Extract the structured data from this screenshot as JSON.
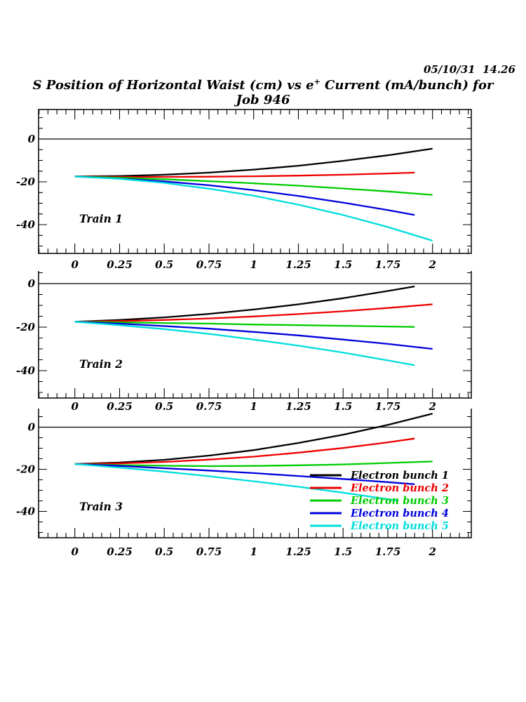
{
  "header": {
    "timestamp": "05/10/31  14.26",
    "title_prefix": "S Position of Horizontal Waist (cm) vs e",
    "title_sup": "+",
    "title_suffix": " Current (mA/bunch) for Job 946"
  },
  "axis": {
    "x_major_values": [
      0,
      0.25,
      0.5,
      0.75,
      1,
      1.25,
      1.5,
      1.75,
      2
    ],
    "x_major_labels": [
      "0",
      "0.25",
      "0.5",
      "0.75",
      "1",
      "1.25",
      "1.5",
      "1.75",
      "2"
    ],
    "y_major_values": [
      0,
      -20,
      -40
    ],
    "y_major_labels": [
      "0",
      "-20",
      "-40"
    ]
  },
  "legend": {
    "items": [
      {
        "label": "Electron bunch 1",
        "color": "#000000"
      },
      {
        "label": "Electron bunch 2",
        "color": "#ee0000"
      },
      {
        "label": "Electron bunch 3",
        "color": "#00cc00"
      },
      {
        "label": "Electron bunch 4",
        "color": "#0000dd"
      },
      {
        "label": "Electron bunch 5",
        "color": "#00dddd"
      }
    ]
  },
  "chart_data": [
    {
      "type": "line",
      "title": "Train 1",
      "xlabel": "e+ Current (mA/bunch)",
      "ylabel": "S Position of Horizontal Waist (cm)",
      "xlim": [
        -0.2,
        2.2
      ],
      "ylim": [
        -53.5,
        13
      ],
      "grid": false,
      "series": [
        {
          "name": "Electron bunch 1",
          "color": "#000000",
          "points": [
            [
              0,
              -17.5
            ],
            [
              0.25,
              -17.3
            ],
            [
              0.5,
              -16.7
            ],
            [
              0.75,
              -15.7
            ],
            [
              1,
              -14.3
            ],
            [
              1.25,
              -12.5
            ],
            [
              1.5,
              -10.2
            ],
            [
              1.75,
              -7.6
            ],
            [
              2,
              -4.5
            ]
          ]
        },
        {
          "name": "Electron bunch 2",
          "color": "#ee0000",
          "points": [
            [
              0,
              -17.5
            ],
            [
              0.25,
              -17.7
            ],
            [
              0.5,
              -17.7
            ],
            [
              0.75,
              -17.6
            ],
            [
              1,
              -17.4
            ],
            [
              1.25,
              -17.1
            ],
            [
              1.5,
              -16.7
            ],
            [
              1.75,
              -16.1
            ],
            [
              1.9,
              -15.7
            ]
          ]
        },
        {
          "name": "Electron bunch 3",
          "color": "#00cc00",
          "points": [
            [
              0,
              -17.5
            ],
            [
              0.25,
              -18.1
            ],
            [
              0.5,
              -18.8
            ],
            [
              0.75,
              -19.7
            ],
            [
              1,
              -20.7
            ],
            [
              1.25,
              -21.8
            ],
            [
              1.5,
              -23.1
            ],
            [
              1.75,
              -24.5
            ],
            [
              2,
              -26.1
            ]
          ]
        },
        {
          "name": "Electron bunch 4",
          "color": "#0000dd",
          "points": [
            [
              0,
              -17.5
            ],
            [
              0.25,
              -18.5
            ],
            [
              0.5,
              -19.8
            ],
            [
              0.75,
              -21.6
            ],
            [
              1,
              -23.9
            ],
            [
              1.25,
              -26.6
            ],
            [
              1.5,
              -29.7
            ],
            [
              1.75,
              -33.2
            ],
            [
              1.9,
              -35.5
            ]
          ]
        },
        {
          "name": "Electron bunch 5",
          "color": "#00dddd",
          "points": [
            [
              0,
              -17.5
            ],
            [
              0.25,
              -18.6
            ],
            [
              0.5,
              -20.5
            ],
            [
              0.75,
              -23.2
            ],
            [
              1,
              -26.5
            ],
            [
              1.25,
              -30.7
            ],
            [
              1.5,
              -35.5
            ],
            [
              1.75,
              -41.1
            ],
            [
              2,
              -47.5
            ]
          ]
        }
      ]
    },
    {
      "type": "line",
      "title": "Train 2",
      "xlabel": "e+ Current (mA/bunch)",
      "ylabel": "S Position of Horizontal Waist (cm)",
      "xlim": [
        -0.2,
        2.2
      ],
      "ylim": [
        -52.6,
        5.8
      ],
      "grid": false,
      "series": [
        {
          "name": "Electron bunch 1",
          "color": "#000000",
          "points": [
            [
              0,
              -17.5
            ],
            [
              0.25,
              -16.7
            ],
            [
              0.5,
              -15.5
            ],
            [
              0.75,
              -13.9
            ],
            [
              1,
              -11.9
            ],
            [
              1.25,
              -9.5
            ],
            [
              1.5,
              -6.7
            ],
            [
              1.75,
              -3.4
            ],
            [
              1.9,
              -1.3
            ]
          ]
        },
        {
          "name": "Electron bunch 2",
          "color": "#ee0000",
          "points": [
            [
              0,
              -17.5
            ],
            [
              0.25,
              -17.2
            ],
            [
              0.5,
              -16.7
            ],
            [
              0.75,
              -16.0
            ],
            [
              1,
              -15.1
            ],
            [
              1.25,
              -14.0
            ],
            [
              1.5,
              -12.7
            ],
            [
              1.75,
              -11.2
            ],
            [
              2,
              -9.5
            ]
          ]
        },
        {
          "name": "Electron bunch 3",
          "color": "#00cc00",
          "points": [
            [
              0,
              -17.5
            ],
            [
              0.25,
              -17.8
            ],
            [
              0.5,
              -18.1
            ],
            [
              0.75,
              -18.4
            ],
            [
              1,
              -18.8
            ],
            [
              1.25,
              -19.1
            ],
            [
              1.5,
              -19.4
            ],
            [
              1.75,
              -19.7
            ],
            [
              1.9,
              -19.9
            ]
          ]
        },
        {
          "name": "Electron bunch 4",
          "color": "#0000dd",
          "points": [
            [
              0,
              -17.5
            ],
            [
              0.25,
              -18.4
            ],
            [
              0.5,
              -19.5
            ],
            [
              0.75,
              -20.7
            ],
            [
              1,
              -22.2
            ],
            [
              1.25,
              -23.8
            ],
            [
              1.5,
              -25.7
            ],
            [
              1.75,
              -27.7
            ],
            [
              2,
              -30.0
            ]
          ]
        },
        {
          "name": "Electron bunch 5",
          "color": "#00dddd",
          "points": [
            [
              0,
              -17.5
            ],
            [
              0.25,
              -19.1
            ],
            [
              0.5,
              -20.9
            ],
            [
              0.75,
              -23.1
            ],
            [
              1,
              -25.7
            ],
            [
              1.25,
              -28.5
            ],
            [
              1.5,
              -31.7
            ],
            [
              1.75,
              -35.3
            ],
            [
              1.9,
              -37.5
            ]
          ]
        }
      ]
    },
    {
      "type": "line",
      "title": "Train 3",
      "xlabel": "e+ Current (mA/bunch)",
      "ylabel": "S Position of Horizontal Waist (cm)",
      "xlim": [
        -0.2,
        2.2
      ],
      "ylim": [
        -52.7,
        8.7
      ],
      "grid": false,
      "legend_position": "inside lower right",
      "series": [
        {
          "name": "Electron bunch 1",
          "color": "#000000",
          "points": [
            [
              0,
              -17.5
            ],
            [
              0.25,
              -16.8
            ],
            [
              0.5,
              -15.5
            ],
            [
              0.75,
              -13.5
            ],
            [
              1,
              -10.9
            ],
            [
              1.25,
              -7.5
            ],
            [
              1.5,
              -3.6
            ],
            [
              1.75,
              1.1
            ],
            [
              2,
              6.4
            ]
          ]
        },
        {
          "name": "Electron bunch 2",
          "color": "#ee0000",
          "points": [
            [
              0,
              -17.5
            ],
            [
              0.25,
              -17.2
            ],
            [
              0.5,
              -16.5
            ],
            [
              0.75,
              -15.4
            ],
            [
              1,
              -14.0
            ],
            [
              1.25,
              -12.1
            ],
            [
              1.5,
              -9.9
            ],
            [
              1.75,
              -7.2
            ],
            [
              1.9,
              -5.4
            ]
          ]
        },
        {
          "name": "Electron bunch 3",
          "color": "#00cc00",
          "points": [
            [
              0,
              -17.5
            ],
            [
              0.25,
              -18.0
            ],
            [
              0.5,
              -18.3
            ],
            [
              0.75,
              -18.5
            ],
            [
              1,
              -18.4
            ],
            [
              1.25,
              -18.1
            ],
            [
              1.5,
              -17.7
            ],
            [
              1.75,
              -17.0
            ],
            [
              2,
              -16.3
            ]
          ]
        },
        {
          "name": "Electron bunch 4",
          "color": "#0000dd",
          "points": [
            [
              0,
              -17.5
            ],
            [
              0.25,
              -18.4
            ],
            [
              0.5,
              -19.5
            ],
            [
              0.75,
              -20.6
            ],
            [
              1,
              -21.8
            ],
            [
              1.25,
              -23.2
            ],
            [
              1.5,
              -24.6
            ],
            [
              1.75,
              -26.1
            ],
            [
              1.9,
              -27.1
            ]
          ]
        },
        {
          "name": "Electron bunch 5",
          "color": "#00dddd",
          "points": [
            [
              0,
              -17.5
            ],
            [
              0.25,
              -19.2
            ],
            [
              0.5,
              -21.1
            ],
            [
              0.75,
              -23.3
            ],
            [
              1,
              -25.7
            ],
            [
              1.25,
              -28.3
            ],
            [
              1.5,
              -31.1
            ],
            [
              1.75,
              -34.2
            ],
            [
              1.8,
              -34.9
            ]
          ]
        }
      ]
    }
  ]
}
